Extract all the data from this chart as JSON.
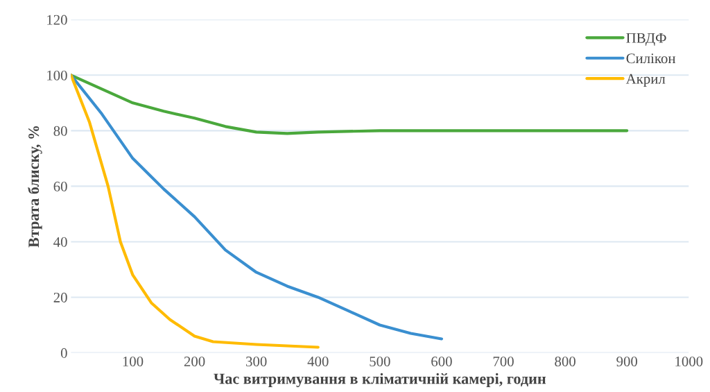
{
  "chart_data": {
    "type": "line",
    "xlabel": "Час витримування в кліматичній камері, годин",
    "ylabel": "Втрата блиску, %",
    "xlim": [
      0,
      1000
    ],
    "xticks": [
      100,
      200,
      300,
      400,
      500,
      600,
      700,
      800,
      900,
      1000
    ],
    "ylim": [
      0,
      120
    ],
    "yticks": [
      0,
      20,
      40,
      60,
      80,
      100,
      120
    ],
    "grid": "y",
    "legend": "top right",
    "marker": "none",
    "line_style": "solid",
    "series": [
      {
        "name": "ПВДФ",
        "color": "#4aa83c",
        "x": [
          0,
          50,
          100,
          150,
          200,
          250,
          300,
          350,
          400,
          500,
          600,
          700,
          800,
          900
        ],
        "values": [
          100,
          95,
          90,
          87,
          84.5,
          81.5,
          79.5,
          79,
          79.5,
          80,
          80,
          80,
          80,
          80
        ]
      },
      {
        "name": "Силікон",
        "color": "#3a8fd0",
        "x": [
          0,
          50,
          100,
          150,
          200,
          250,
          300,
          350,
          400,
          450,
          500,
          550,
          600
        ],
        "values": [
          100,
          86,
          70,
          59,
          49,
          37,
          29,
          24,
          20,
          15,
          10,
          7,
          5
        ]
      },
      {
        "name": "Акрил",
        "color": "#ffbb00",
        "x": [
          0,
          30,
          60,
          80,
          100,
          130,
          160,
          200,
          230,
          300,
          400
        ],
        "values": [
          100,
          83,
          60,
          40,
          28,
          18,
          12,
          6,
          4,
          3,
          2
        ]
      }
    ]
  }
}
